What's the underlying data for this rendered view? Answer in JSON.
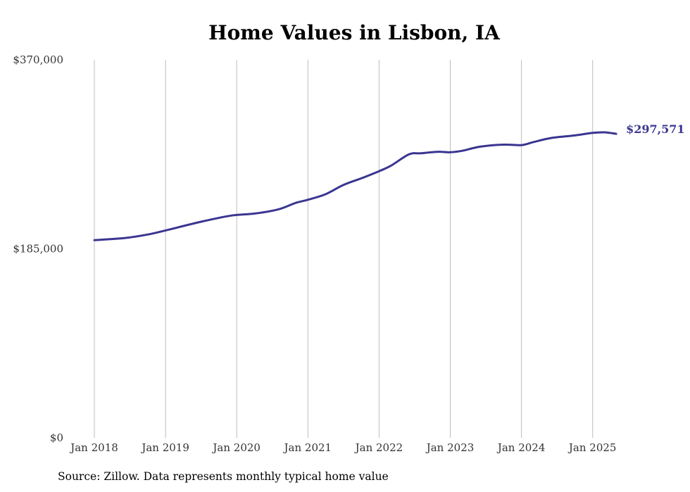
{
  "chart_data": {
    "type": "line",
    "title": "Home Values in Lisbon, IA",
    "xlabel": "",
    "ylabel": "",
    "ylim": [
      0,
      370000
    ],
    "y_ticks": [
      "$0",
      "$185,000",
      "$370,000"
    ],
    "x_ticks": [
      "Jan 2018",
      "Jan 2019",
      "Jan 2020",
      "Jan 2021",
      "Jan 2022",
      "Jan 2023",
      "Jan 2024",
      "Jan 2025"
    ],
    "grid": "vertical",
    "line_color": "#3a3591",
    "end_label": "$297,571",
    "series": [
      {
        "x": [
          2018.0,
          2018.42,
          2018.75,
          2019.0,
          2019.5,
          2019.92,
          2020.25,
          2020.58,
          2020.83,
          2021.0,
          2021.25,
          2021.5,
          2021.75,
          2022.0,
          2022.17,
          2022.42,
          2022.58,
          2022.83,
          2023.0,
          2023.17,
          2023.42,
          2023.75,
          2024.0,
          2024.17,
          2024.42,
          2024.75,
          2025.0,
          2025.17,
          2025.33
        ],
        "y": [
          193500,
          195500,
          199000,
          203000,
          211500,
          217500,
          219500,
          223500,
          230000,
          233000,
          238500,
          247500,
          254000,
          261000,
          266500,
          277500,
          278500,
          280000,
          279500,
          281000,
          285000,
          287000,
          286500,
          289500,
          293500,
          296000,
          298500,
          299000,
          297571
        ]
      }
    ]
  },
  "source_text": "Source: Zillow. Data represents monthly typical home value"
}
